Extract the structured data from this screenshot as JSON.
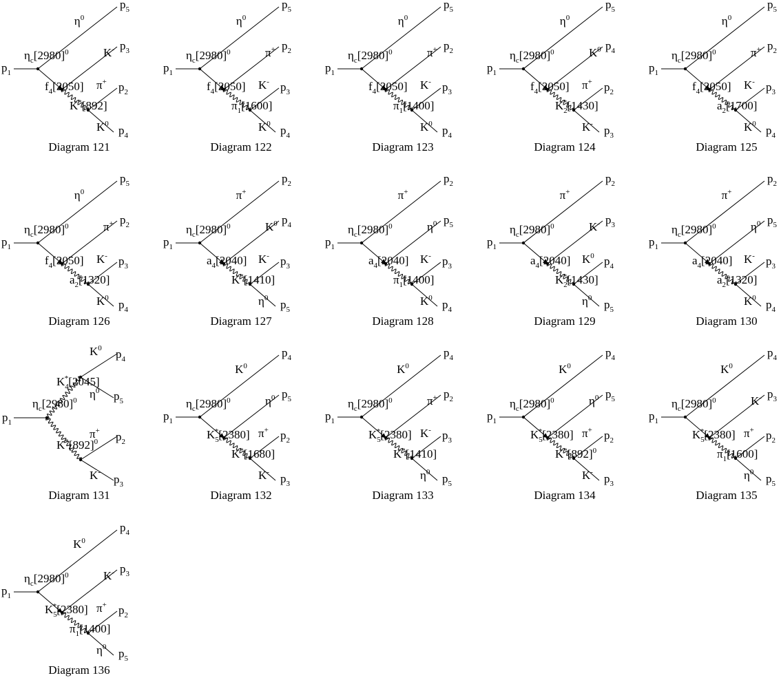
{
  "diagrams": [
    {
      "caption": "Diagram 121",
      "in": [
        "p",
        {
          "sub": "1"
        }
      ],
      "top": [
        "η",
        {
          "sup": "0"
        }
      ],
      "eta_c": [
        "η",
        {
          "sub": "c"
        },
        "[2980]",
        {
          "sup": "0"
        }
      ],
      "mid": [
        "K",
        {
          "sup": "-"
        }
      ],
      "prop1": [
        "f",
        {
          "sub": "4"
        },
        "[2050]"
      ],
      "particle2": [
        "π",
        {
          "sup": "+"
        }
      ],
      "prop2": [
        "K",
        {
          "sup": "*"
        },
        "[892]"
      ],
      "particle3": [
        "K",
        {
          "sup": "0"
        }
      ],
      "out_top": [
        "p",
        {
          "sub": "5"
        }
      ],
      "out_mid": [
        "p",
        {
          "sub": "3"
        }
      ],
      "out_lower": [
        "p",
        {
          "sub": "2"
        }
      ],
      "out_bottom": [
        "p",
        {
          "sub": "4"
        }
      ]
    },
    {
      "caption": "Diagram 122",
      "in": [
        "p",
        {
          "sub": "1"
        }
      ],
      "top": [
        "η",
        {
          "sup": "0"
        }
      ],
      "eta_c": [
        "η",
        {
          "sub": "c"
        },
        "[2980]",
        {
          "sup": "0"
        }
      ],
      "mid": [
        "π",
        {
          "sup": "+"
        }
      ],
      "prop1": [
        "f",
        {
          "sub": "4"
        },
        "[2050]"
      ],
      "particle2": [
        "K",
        {
          "sup": "-"
        }
      ],
      "prop2": [
        "π",
        {
          "sub": "1"
        },
        "[1600]"
      ],
      "particle3": [
        "K",
        {
          "sup": "0"
        }
      ],
      "out_top": [
        "p",
        {
          "sub": "5"
        }
      ],
      "out_mid": [
        "p",
        {
          "sub": "2"
        }
      ],
      "out_lower": [
        "p",
        {
          "sub": "3"
        }
      ],
      "out_bottom": [
        "p",
        {
          "sub": "4"
        }
      ]
    },
    {
      "caption": "Diagram 123",
      "in": [
        "p",
        {
          "sub": "1"
        }
      ],
      "top": [
        "η",
        {
          "sup": "0"
        }
      ],
      "eta_c": [
        "η",
        {
          "sub": "c"
        },
        "[2980]",
        {
          "sup": "0"
        }
      ],
      "mid": [
        "π",
        {
          "sup": "+"
        }
      ],
      "prop1": [
        "f",
        {
          "sub": "4"
        },
        "[2050]"
      ],
      "particle2": [
        "K",
        {
          "sup": "-"
        }
      ],
      "prop2": [
        "π",
        {
          "sub": "1"
        },
        "[1400]"
      ],
      "particle3": [
        "K",
        {
          "sup": "0"
        }
      ],
      "out_top": [
        "p",
        {
          "sub": "5"
        }
      ],
      "out_mid": [
        "p",
        {
          "sub": "2"
        }
      ],
      "out_lower": [
        "p",
        {
          "sub": "3"
        }
      ],
      "out_bottom": [
        "p",
        {
          "sub": "4"
        }
      ]
    },
    {
      "caption": "Diagram 124",
      "in": [
        "p",
        {
          "sub": "1"
        }
      ],
      "top": [
        "η",
        {
          "sup": "0"
        }
      ],
      "eta_c": [
        "η",
        {
          "sub": "c"
        },
        "[2980]",
        {
          "sup": "0"
        }
      ],
      "mid": [
        "K",
        {
          "sup": "0"
        }
      ],
      "prop1": [
        "f",
        {
          "sub": "4"
        },
        "[2050]"
      ],
      "particle2": [
        "π",
        {
          "sup": "+"
        }
      ],
      "prop2": [
        "K",
        {
          "sub": "2"
        },
        {
          "sup": "*"
        },
        "[1430]"
      ],
      "particle3": [
        "K",
        {
          "sup": "-"
        }
      ],
      "out_top": [
        "p",
        {
          "sub": "5"
        }
      ],
      "out_mid": [
        "p",
        {
          "sub": "4"
        }
      ],
      "out_lower": [
        "p",
        {
          "sub": "2"
        }
      ],
      "out_bottom": [
        "p",
        {
          "sub": "3"
        }
      ]
    },
    {
      "caption": "Diagram 125",
      "in": [
        "p",
        {
          "sub": "1"
        }
      ],
      "top": [
        "η",
        {
          "sup": "0"
        }
      ],
      "eta_c": [
        "η",
        {
          "sub": "c"
        },
        "[2980]",
        {
          "sup": "0"
        }
      ],
      "mid": [
        "π",
        {
          "sup": "+"
        }
      ],
      "prop1": [
        "f",
        {
          "sub": "4"
        },
        "[2050]"
      ],
      "particle2": [
        "K",
        {
          "sup": "-"
        }
      ],
      "prop2": [
        "a",
        {
          "sub": "2"
        },
        "[1700]"
      ],
      "particle3": [
        "K",
        {
          "sup": "0"
        }
      ],
      "out_top": [
        "p",
        {
          "sub": "5"
        }
      ],
      "out_mid": [
        "p",
        {
          "sub": "2"
        }
      ],
      "out_lower": [
        "p",
        {
          "sub": "3"
        }
      ],
      "out_bottom": [
        "p",
        {
          "sub": "4"
        }
      ]
    },
    {
      "caption": "Diagram 126",
      "in": [
        "p",
        {
          "sub": "1"
        }
      ],
      "top": [
        "η",
        {
          "sup": "0"
        }
      ],
      "eta_c": [
        "η",
        {
          "sub": "c"
        },
        "[2980]",
        {
          "sup": "0"
        }
      ],
      "mid": [
        "π",
        {
          "sup": "+"
        }
      ],
      "prop1": [
        "f",
        {
          "sub": "4"
        },
        "[2050]"
      ],
      "particle2": [
        "K",
        {
          "sup": "-"
        }
      ],
      "prop2": [
        "a",
        {
          "sub": "2"
        },
        "[1320]"
      ],
      "particle3": [
        "K",
        {
          "sup": "0"
        }
      ],
      "out_top": [
        "p",
        {
          "sub": "5"
        }
      ],
      "out_mid": [
        "p",
        {
          "sub": "2"
        }
      ],
      "out_lower": [
        "p",
        {
          "sub": "3"
        }
      ],
      "out_bottom": [
        "p",
        {
          "sub": "4"
        }
      ]
    },
    {
      "caption": "Diagram 127",
      "in": [
        "p",
        {
          "sub": "1"
        }
      ],
      "top": [
        "π",
        {
          "sup": "+"
        }
      ],
      "eta_c": [
        "η",
        {
          "sub": "c"
        },
        "[2980]",
        {
          "sup": "0"
        }
      ],
      "mid": [
        "K",
        {
          "sup": "0"
        }
      ],
      "prop1": [
        "a",
        {
          "sub": "4"
        },
        "[2040]"
      ],
      "particle2": [
        "K",
        {
          "sup": "-"
        }
      ],
      "prop2": [
        "K",
        {
          "sup": "*"
        },
        "[1410]"
      ],
      "particle3": [
        "η",
        {
          "sup": "0"
        }
      ],
      "out_top": [
        "p",
        {
          "sub": "2"
        }
      ],
      "out_mid": [
        "p",
        {
          "sub": "4"
        }
      ],
      "out_lower": [
        "p",
        {
          "sub": "3"
        }
      ],
      "out_bottom": [
        "p",
        {
          "sub": "5"
        }
      ]
    },
    {
      "caption": "Diagram 128",
      "in": [
        "p",
        {
          "sub": "1"
        }
      ],
      "top": [
        "π",
        {
          "sup": "+"
        }
      ],
      "eta_c": [
        "η",
        {
          "sub": "c"
        },
        "[2980]",
        {
          "sup": "0"
        }
      ],
      "mid": [
        "η",
        {
          "sup": "0"
        }
      ],
      "prop1": [
        "a",
        {
          "sub": "4"
        },
        "[2040]"
      ],
      "particle2": [
        "K",
        {
          "sup": "-"
        }
      ],
      "prop2": [
        "π",
        {
          "sub": "1"
        },
        "[1400]"
      ],
      "particle3": [
        "K",
        {
          "sup": "0"
        }
      ],
      "out_top": [
        "p",
        {
          "sub": "2"
        }
      ],
      "out_mid": [
        "p",
        {
          "sub": "5"
        }
      ],
      "out_lower": [
        "p",
        {
          "sub": "3"
        }
      ],
      "out_bottom": [
        "p",
        {
          "sub": "4"
        }
      ]
    },
    {
      "caption": "Diagram 129",
      "in": [
        "p",
        {
          "sub": "1"
        }
      ],
      "top": [
        "π",
        {
          "sup": "+"
        }
      ],
      "eta_c": [
        "η",
        {
          "sub": "c"
        },
        "[2980]",
        {
          "sup": "0"
        }
      ],
      "mid": [
        "K",
        {
          "sup": "-"
        }
      ],
      "prop1": [
        "a",
        {
          "sub": "4"
        },
        "[2040]"
      ],
      "particle2": [
        "K",
        {
          "sup": "0"
        }
      ],
      "prop2": [
        "K",
        {
          "sub": "2"
        },
        {
          "sup": "*"
        },
        "[1430]"
      ],
      "particle3": [
        "η",
        {
          "sup": "0"
        }
      ],
      "out_top": [
        "p",
        {
          "sub": "2"
        }
      ],
      "out_mid": [
        "p",
        {
          "sub": "3"
        }
      ],
      "out_lower": [
        "p",
        {
          "sub": "4"
        }
      ],
      "out_bottom": [
        "p",
        {
          "sub": "5"
        }
      ]
    },
    {
      "caption": "Diagram 130",
      "in": [
        "p",
        {
          "sub": "1"
        }
      ],
      "top": [
        "π",
        {
          "sup": "+"
        }
      ],
      "eta_c": [
        "η",
        {
          "sub": "c"
        },
        "[2980]",
        {
          "sup": "0"
        }
      ],
      "mid": [
        "η",
        {
          "sup": "0"
        }
      ],
      "prop1": [
        "a",
        {
          "sub": "4"
        },
        "[2040]"
      ],
      "particle2": [
        "K",
        {
          "sup": "-"
        }
      ],
      "prop2": [
        "a",
        {
          "sub": "2"
        },
        "[1320]"
      ],
      "particle3": [
        "K",
        {
          "sup": "0"
        }
      ],
      "out_top": [
        "p",
        {
          "sub": "2"
        }
      ],
      "out_mid": [
        "p",
        {
          "sub": "5"
        }
      ],
      "out_lower": [
        "p",
        {
          "sub": "3"
        }
      ],
      "out_bottom": [
        "p",
        {
          "sub": "4"
        }
      ]
    },
    {
      "caption": "Diagram 131",
      "in": [
        "p",
        {
          "sub": "1"
        }
      ],
      "eta_c": [
        "η",
        {
          "sub": "c"
        },
        "[2980]",
        {
          "sup": "0"
        }
      ],
      "prop_up": [
        "K",
        {
          "sub": "4"
        },
        {
          "sup": "*"
        },
        "[2045]"
      ],
      "up_a": [
        "K",
        {
          "sup": "0"
        }
      ],
      "up_b": [
        "η",
        {
          "sup": "0"
        }
      ],
      "prop_down": [
        "K",
        {
          "sup": "*"
        },
        "[892]",
        {
          "sup": "0"
        }
      ],
      "down_a": [
        "π",
        {
          "sup": "+"
        }
      ],
      "down_b": [
        "K",
        {
          "sup": "-"
        }
      ],
      "out_up_a": [
        "p",
        {
          "sub": "4"
        }
      ],
      "out_up_b": [
        "p",
        {
          "sub": "5"
        }
      ],
      "out_down_a": [
        "p",
        {
          "sub": "2"
        }
      ],
      "out_down_b": [
        "p",
        {
          "sub": "3"
        }
      ]
    },
    {
      "caption": "Diagram 132",
      "in": [
        "p",
        {
          "sub": "1"
        }
      ],
      "top": [
        "K",
        {
          "sup": "0"
        }
      ],
      "eta_c": [
        "η",
        {
          "sub": "c"
        },
        "[2980]",
        {
          "sup": "0"
        }
      ],
      "mid": [
        "η",
        {
          "sup": "0"
        }
      ],
      "prop1": [
        "K",
        {
          "sub": "5"
        },
        {
          "sup": "*"
        },
        "[2380]"
      ],
      "particle2": [
        "π",
        {
          "sup": "+"
        }
      ],
      "prop2": [
        "K",
        {
          "sup": "*"
        },
        "[1680]"
      ],
      "particle3": [
        "K",
        {
          "sup": "-"
        }
      ],
      "out_top": [
        "p",
        {
          "sub": "4"
        }
      ],
      "out_mid": [
        "p",
        {
          "sub": "5"
        }
      ],
      "out_lower": [
        "p",
        {
          "sub": "2"
        }
      ],
      "out_bottom": [
        "p",
        {
          "sub": "3"
        }
      ]
    },
    {
      "caption": "Diagram 133",
      "in": [
        "p",
        {
          "sub": "1"
        }
      ],
      "top": [
        "K",
        {
          "sup": "0"
        }
      ],
      "eta_c": [
        "η",
        {
          "sub": "c"
        },
        "[2980]",
        {
          "sup": "0"
        }
      ],
      "mid": [
        "π",
        {
          "sup": "+"
        }
      ],
      "prop1": [
        "K",
        {
          "sub": "5"
        },
        {
          "sup": "*"
        },
        "[2380]"
      ],
      "particle2": [
        "K",
        {
          "sup": "-"
        }
      ],
      "prop2": [
        "K",
        {
          "sup": "*"
        },
        "[1410]"
      ],
      "particle3": [
        "η",
        {
          "sup": "0"
        }
      ],
      "out_top": [
        "p",
        {
          "sub": "4"
        }
      ],
      "out_mid": [
        "p",
        {
          "sub": "2"
        }
      ],
      "out_lower": [
        "p",
        {
          "sub": "3"
        }
      ],
      "out_bottom": [
        "p",
        {
          "sub": "5"
        }
      ]
    },
    {
      "caption": "Diagram 134",
      "in": [
        "p",
        {
          "sub": "1"
        }
      ],
      "top": [
        "K",
        {
          "sup": "0"
        }
      ],
      "eta_c": [
        "η",
        {
          "sub": "c"
        },
        "[2980]",
        {
          "sup": "0"
        }
      ],
      "mid": [
        "η",
        {
          "sup": "0"
        }
      ],
      "prop1": [
        "K",
        {
          "sub": "5"
        },
        {
          "sup": "*"
        },
        "[2380]"
      ],
      "particle2": [
        "π",
        {
          "sup": "+"
        }
      ],
      "prop2": [
        "K",
        {
          "sup": "*"
        },
        "[892]",
        {
          "sup": "0"
        }
      ],
      "particle3": [
        "K",
        {
          "sup": "-"
        }
      ],
      "out_top": [
        "p",
        {
          "sub": "4"
        }
      ],
      "out_mid": [
        "p",
        {
          "sub": "5"
        }
      ],
      "out_lower": [
        "p",
        {
          "sub": "2"
        }
      ],
      "out_bottom": [
        "p",
        {
          "sub": "3"
        }
      ]
    },
    {
      "caption": "Diagram 135",
      "in": [
        "p",
        {
          "sub": "1"
        }
      ],
      "top": [
        "K",
        {
          "sup": "0"
        }
      ],
      "eta_c": [
        "η",
        {
          "sub": "c"
        },
        "[2980]",
        {
          "sup": "0"
        }
      ],
      "mid": [
        "K",
        {
          "sup": "-"
        }
      ],
      "prop1": [
        "K",
        {
          "sub": "5"
        },
        {
          "sup": "*"
        },
        "[2380]"
      ],
      "particle2": [
        "π",
        {
          "sup": "+"
        }
      ],
      "prop2": [
        "π",
        {
          "sub": "1"
        },
        "[1600]"
      ],
      "particle3": [
        "η",
        {
          "sup": "0"
        }
      ],
      "out_top": [
        "p",
        {
          "sub": "4"
        }
      ],
      "out_mid": [
        "p",
        {
          "sub": "3"
        }
      ],
      "out_lower": [
        "p",
        {
          "sub": "2"
        }
      ],
      "out_bottom": [
        "p",
        {
          "sub": "5"
        }
      ]
    },
    {
      "caption": "Diagram 136",
      "in": [
        "p",
        {
          "sub": "1"
        }
      ],
      "top": [
        "K",
        {
          "sup": "0"
        }
      ],
      "eta_c": [
        "η",
        {
          "sub": "c"
        },
        "[2980]",
        {
          "sup": "0"
        }
      ],
      "mid": [
        "K",
        {
          "sup": "-"
        }
      ],
      "prop1": [
        "K",
        {
          "sub": "5"
        },
        {
          "sup": "*"
        },
        "[2380]"
      ],
      "particle2": [
        "π",
        {
          "sup": "+"
        }
      ],
      "prop2": [
        "π",
        {
          "sub": "1"
        },
        "[1400]"
      ],
      "particle3": [
        "η",
        {
          "sup": "0"
        }
      ],
      "out_top": [
        "p",
        {
          "sub": "4"
        }
      ],
      "out_mid": [
        "p",
        {
          "sub": "3"
        }
      ],
      "out_lower": [
        "p",
        {
          "sub": "2"
        }
      ],
      "out_bottom": [
        "p",
        {
          "sub": "5"
        }
      ]
    }
  ]
}
